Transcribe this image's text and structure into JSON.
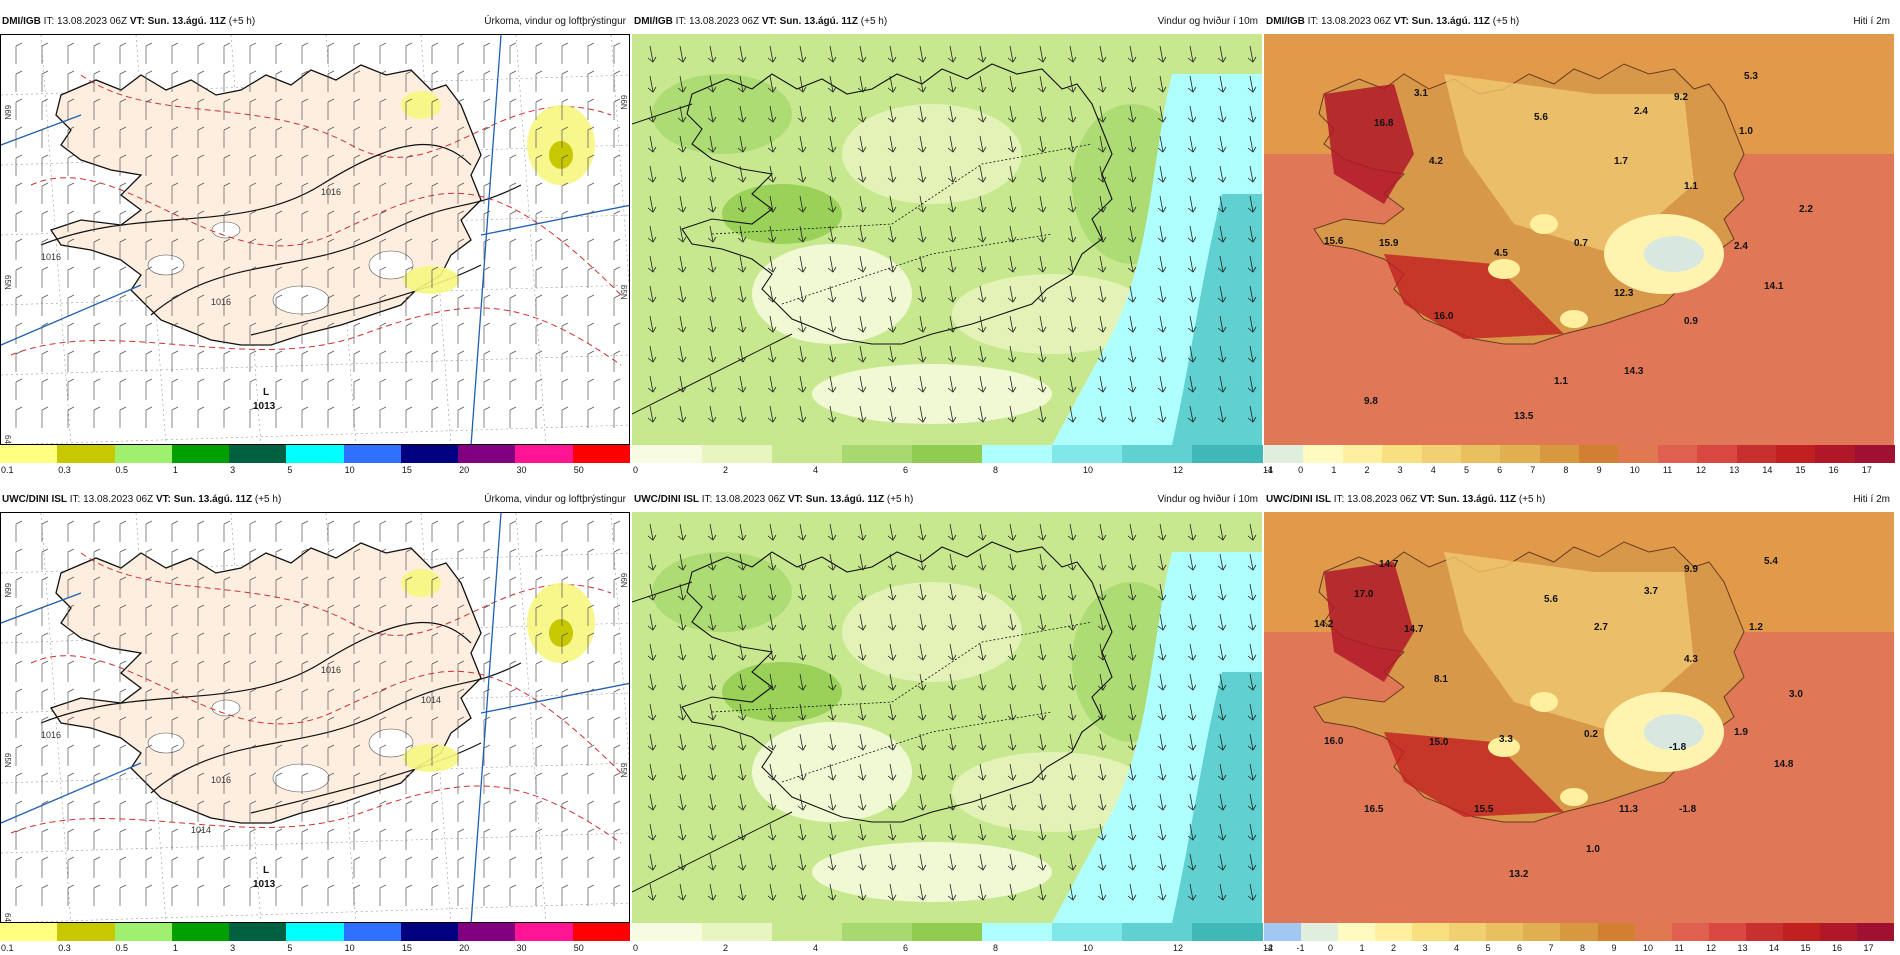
{
  "rows": [
    {
      "model": "DMI/IGB",
      "issue": "IT: 13.08.2023 06Z",
      "valid_label": "VT:",
      "valid": "Sun. 13.ágú. 11Z",
      "lead": "(+5 h)",
      "panels": [
        {
          "title": "Úrkoma, vindur og loftþrýstingur",
          "type": "precip",
          "low_label": "L",
          "low_value": "1013",
          "isobars": [
            "1016",
            "1016",
            "1016"
          ],
          "grid_labels": [
            "66N",
            "65N",
            "64N",
            "66N",
            "65N",
            "25W"
          ]
        },
        {
          "title": "Vindur og hviður í 10m",
          "type": "wind"
        },
        {
          "title": "Hiti í 2m",
          "type": "temp",
          "values": [
            "3.1",
            "16.8",
            "4.2",
            "5.6",
            "2.4",
            "9.2",
            "5.3",
            "1.7",
            "1.0",
            "1.1",
            "2.2",
            "15.6",
            "15.9",
            "4.5",
            "0.7",
            "2.4",
            "16.0",
            "12.3",
            "0.9",
            "14.1",
            "9.8",
            "1.1",
            "14.3",
            "13.5"
          ]
        }
      ]
    },
    {
      "model": "UWC/DINI ISL",
      "issue": "IT: 13.08.2023 06Z",
      "valid_label": "VT:",
      "valid": "Sun. 13.ágú. 11Z",
      "lead": "(+5 h)",
      "panels": [
        {
          "title": "Úrkoma, vindur og loftþrýstingur",
          "type": "precip",
          "low_label": "L",
          "low_value": "1013",
          "isobars": [
            "1016",
            "1016",
            "1016",
            "1014",
            "1014"
          ],
          "grid_labels": [
            "66N",
            "65N",
            "64N",
            "66N",
            "65N",
            "25W"
          ]
        },
        {
          "title": "Vindur og hviður í 10m",
          "type": "wind"
        },
        {
          "title": "Hiti í 2m",
          "type": "temp",
          "values": [
            "14.7",
            "17.0",
            "14.2",
            "14.7",
            "5.6",
            "3.7",
            "9.9",
            "5.4",
            "2.7",
            "1.2",
            "4.3",
            "8.1",
            "3.0",
            "16.0",
            "15.0",
            "3.3",
            "0.2",
            "1.9",
            "-1.8",
            "14.8",
            "16.5",
            "15.5",
            "11.3",
            "-1.8",
            "1.0",
            "13.2"
          ]
        }
      ]
    }
  ],
  "legends": {
    "precip": {
      "colors": [
        "#ffff80",
        "#c8c800",
        "#a0f070",
        "#00a000",
        "#006040",
        "#00ffff",
        "#3070ff",
        "#000080",
        "#800080",
        "#ff1493",
        "#ff0000"
      ],
      "ticks": [
        "0.1",
        "0.3",
        "0.5",
        "1",
        "3",
        "5",
        "10",
        "15",
        "20",
        "30",
        "50"
      ]
    },
    "wind": {
      "colors": [
        "#f7fbe0",
        "#e8f5c0",
        "#c8e890",
        "#a8d870",
        "#90cc50",
        "#b0ffff",
        "#80e8e8",
        "#60d0d0",
        "#40b8b8"
      ],
      "ticks": [
        "0",
        "2",
        "4",
        "6",
        "8",
        "10",
        "12",
        "14"
      ]
    },
    "temp_top": {
      "colors": [
        "#e0eee0",
        "#fffbc0",
        "#fff0a0",
        "#f8e080",
        "#f0d070",
        "#e8c060",
        "#e0b050",
        "#d89840",
        "#d08030",
        "#e07850",
        "#e06050",
        "#d84840",
        "#c83030",
        "#c02020",
        "#b01828",
        "#a01030"
      ],
      "ticks": [
        "-1",
        "0",
        "1",
        "2",
        "3",
        "4",
        "5",
        "6",
        "7",
        "8",
        "9",
        "10",
        "11",
        "12",
        "13",
        "14",
        "15",
        "16",
        "17"
      ]
    },
    "temp_bottom": {
      "colors": [
        "#a0c8f0",
        "#e0eee0",
        "#fffbc0",
        "#fff0a0",
        "#f8e080",
        "#f0d070",
        "#e8c060",
        "#e0b050",
        "#d89840",
        "#d08030",
        "#e07850",
        "#e06050",
        "#d84840",
        "#c83030",
        "#c02020",
        "#b01828",
        "#a01030"
      ],
      "ticks": [
        "-2",
        "-1",
        "0",
        "1",
        "2",
        "3",
        "4",
        "5",
        "6",
        "7",
        "8",
        "9",
        "10",
        "11",
        "12",
        "13",
        "14",
        "15",
        "16",
        "17"
      ]
    }
  }
}
